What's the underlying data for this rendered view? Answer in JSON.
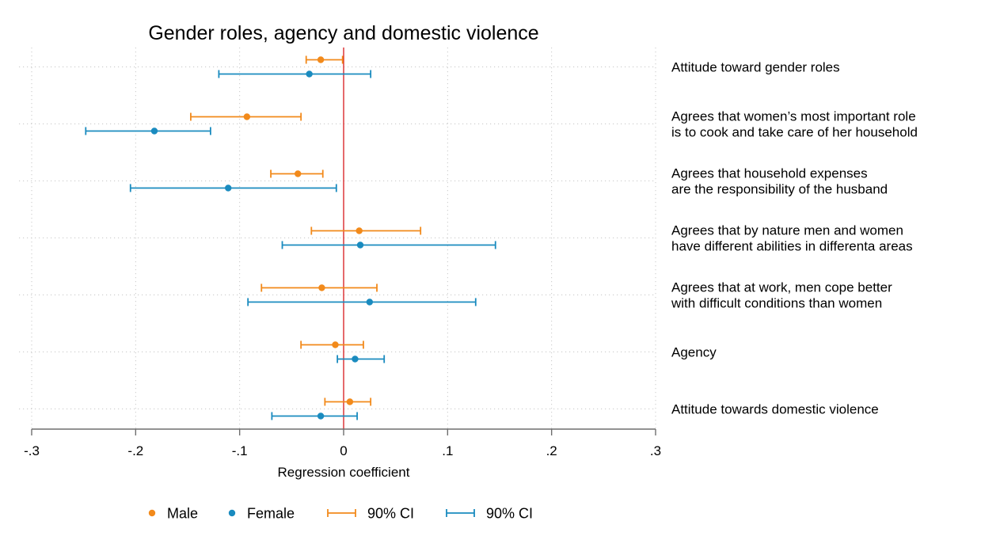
{
  "chart_data": {
    "type": "scatter",
    "title": "Gender roles, agency and domestic violence",
    "xlabel": "Regression coefficient",
    "ylabel": "",
    "xlim": [
      -0.3,
      0.3
    ],
    "xticks": [
      {
        "value": -0.3,
        "label": "-.3"
      },
      {
        "value": -0.2,
        "label": "-.2"
      },
      {
        "value": -0.1,
        "label": "-.1"
      },
      {
        "value": 0,
        "label": "0"
      },
      {
        "value": 0.1,
        "label": ".1"
      },
      {
        "value": 0.2,
        "label": ".2"
      },
      {
        "value": 0.3,
        "label": ".3"
      }
    ],
    "reference_line": {
      "x": 0,
      "color": "#d7191c"
    },
    "grid": true,
    "legend_position": "bottom",
    "categories": [
      {
        "lines": [
          "Attitude toward gender roles"
        ]
      },
      {
        "lines": [
          "Agrees that women’s most important role",
          "is to cook and take care of her household"
        ]
      },
      {
        "lines": [
          "Agrees that household expenses",
          "are the responsibility of the husband"
        ]
      },
      {
        "lines": [
          "Agrees that by nature men and women",
          "have different abilities in differenta areas"
        ]
      },
      {
        "lines": [
          "Agrees that at work, men cope better",
          "with difficult conditions than women"
        ]
      },
      {
        "lines": [
          "Agency"
        ]
      },
      {
        "lines": [
          "Attitude towards domestic violence"
        ]
      }
    ],
    "series": [
      {
        "key": "male",
        "color": "#f28a1b",
        "estimate": [
          -0.022,
          -0.093,
          -0.044,
          0.015,
          -0.021,
          -0.008,
          0.006
        ],
        "ci_low": [
          -0.036,
          -0.147,
          -0.07,
          -0.031,
          -0.079,
          -0.041,
          -0.018
        ],
        "ci_high": [
          -0.001,
          -0.041,
          -0.02,
          0.074,
          0.032,
          0.019,
          0.026
        ]
      },
      {
        "key": "female",
        "color": "#1a8bbf",
        "estimate": [
          -0.033,
          -0.182,
          -0.111,
          0.016,
          0.025,
          0.011,
          -0.022
        ],
        "ci_low": [
          -0.12,
          -0.248,
          -0.205,
          -0.059,
          -0.092,
          -0.006,
          -0.069
        ],
        "ci_high": [
          0.026,
          -0.128,
          -0.007,
          0.146,
          0.127,
          0.039,
          0.013
        ]
      }
    ],
    "legend": [
      {
        "kind": "dot",
        "series": "male",
        "label": "Male"
      },
      {
        "kind": "dot",
        "series": "female",
        "label": "Female"
      },
      {
        "kind": "ci",
        "series": "male",
        "label": "90% CI"
      },
      {
        "kind": "ci",
        "series": "female",
        "label": "90% CI"
      }
    ]
  }
}
